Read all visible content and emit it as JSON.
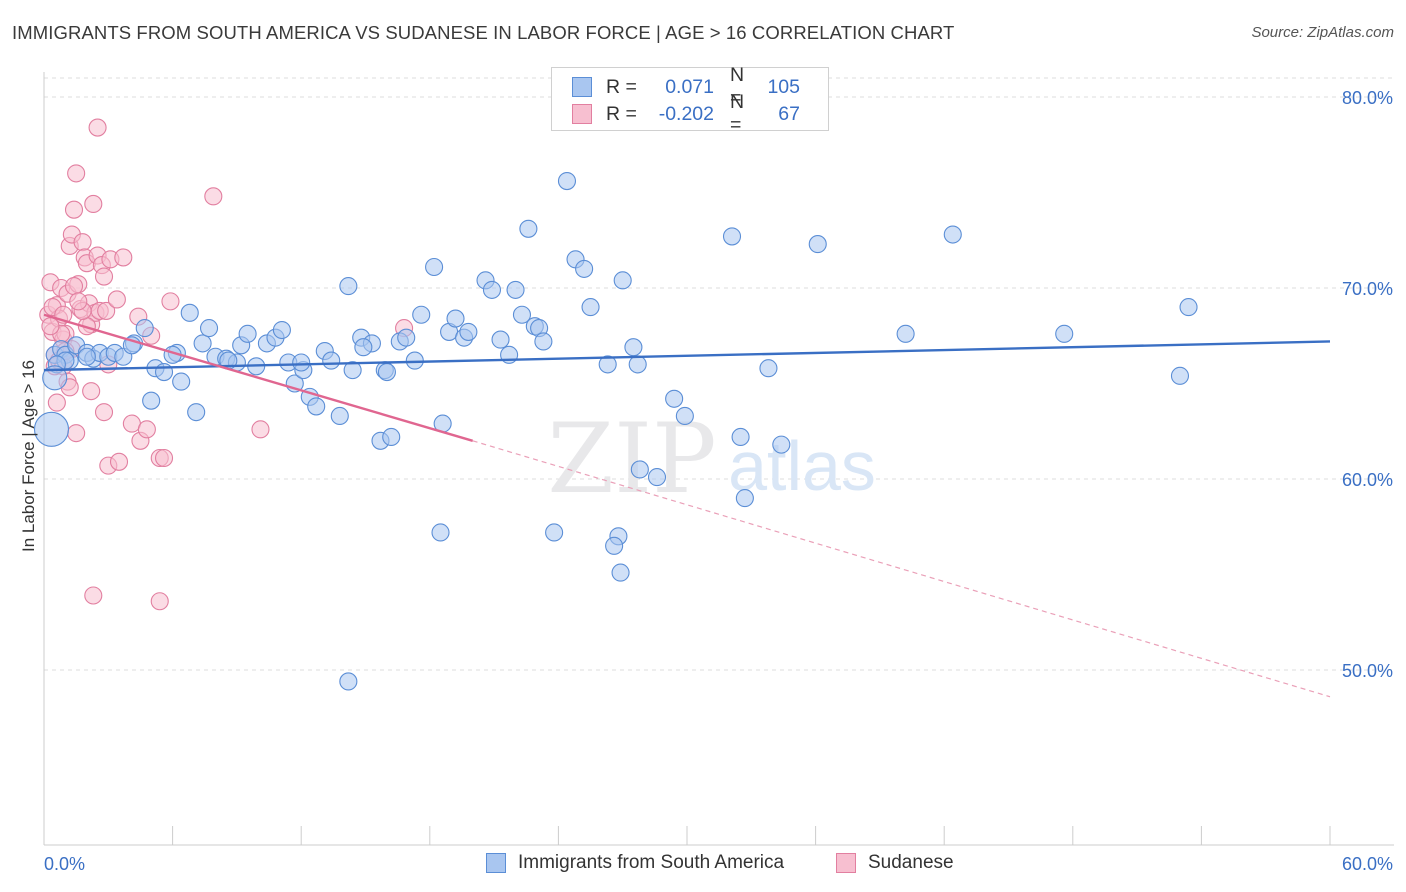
{
  "title": "IMMIGRANTS FROM SOUTH AMERICA VS SUDANESE IN LABOR FORCE | AGE > 16 CORRELATION CHART",
  "source": "Source: ZipAtlas.com",
  "watermark": {
    "zip": "ZIP",
    "atlas": "atlas"
  },
  "legend": {
    "r_label": "R =",
    "n_label": "N =",
    "rows": [
      {
        "name": "blue",
        "r": "0.071",
        "n": "105",
        "fill": "#a9c6f0",
        "stroke": "#5b8ed6"
      },
      {
        "name": "pink",
        "r": "-0.202",
        "n": "67",
        "fill": "#f7bfd0",
        "stroke": "#e27fa0"
      }
    ]
  },
  "bottom_legend": [
    {
      "label": "Immigrants from South America",
      "fill": "#a9c6f0",
      "stroke": "#5b8ed6"
    },
    {
      "label": "Sudanese",
      "fill": "#f7bfd0",
      "stroke": "#e27fa0"
    }
  ],
  "chart_data": {
    "type": "scatter",
    "title": "IMMIGRANTS FROM SOUTH AMERICA VS SUDANESE IN LABOR FORCE | AGE > 16 CORRELATION CHART",
    "xlabel": "",
    "ylabel": "In Labor Force | Age > 16",
    "xlim": [
      0,
      60
    ],
    "ylim": [
      40,
      82
    ],
    "x_tick_labels": [
      "0.0%",
      "60.0%"
    ],
    "y_ticks": [
      50,
      60,
      70,
      80
    ],
    "y_tick_labels": [
      "50.0%",
      "60.0%",
      "70.0%",
      "80.0%"
    ],
    "colors": {
      "blue": "#3a6fc4",
      "blue_fill": "#a9c6f0",
      "pink": "#e06690",
      "pink_fill": "#f7bfd0",
      "grid": "#dddddd"
    },
    "series": [
      {
        "name": "Immigrants from South America",
        "color": "#3a6fc4",
        "r": 0.071,
        "n": 105,
        "trend": {
          "x": [
            0,
            60
          ],
          "y": [
            65.7,
            67.2
          ]
        },
        "points": [
          [
            0.5,
            66.5
          ],
          [
            0.8,
            66.8
          ],
          [
            1.0,
            66.5
          ],
          [
            1.2,
            66.2
          ],
          [
            1.5,
            67.0
          ],
          [
            2.0,
            66.6
          ],
          [
            2.3,
            66.3
          ],
          [
            2.6,
            66.6
          ],
          [
            3.0,
            66.4
          ],
          [
            3.3,
            66.6
          ],
          [
            3.7,
            66.4
          ],
          [
            4.2,
            67.1
          ],
          [
            4.7,
            67.9
          ],
          [
            5.0,
            64.1
          ],
          [
            5.2,
            65.8
          ],
          [
            5.6,
            65.6
          ],
          [
            6.2,
            66.6
          ],
          [
            6.4,
            65.1
          ],
          [
            6.8,
            68.7
          ],
          [
            7.1,
            63.5
          ],
          [
            7.4,
            67.1
          ],
          [
            7.7,
            67.9
          ],
          [
            8.0,
            66.4
          ],
          [
            8.5,
            66.3
          ],
          [
            9.0,
            66.1
          ],
          [
            9.2,
            67.0
          ],
          [
            9.5,
            67.6
          ],
          [
            9.9,
            65.9
          ],
          [
            10.4,
            67.1
          ],
          [
            10.8,
            67.4
          ],
          [
            11.1,
            67.8
          ],
          [
            11.4,
            66.1
          ],
          [
            11.7,
            65.0
          ],
          [
            12.1,
            65.7
          ],
          [
            12.4,
            64.3
          ],
          [
            12.7,
            63.8
          ],
          [
            13.1,
            66.7
          ],
          [
            13.4,
            66.2
          ],
          [
            13.8,
            63.3
          ],
          [
            14.2,
            70.1
          ],
          [
            14.4,
            65.7
          ],
          [
            14.8,
            67.4
          ],
          [
            15.3,
            67.1
          ],
          [
            15.7,
            62.0
          ],
          [
            15.9,
            65.7
          ],
          [
            16.2,
            62.2
          ],
          [
            16.6,
            67.2
          ],
          [
            16.9,
            67.4
          ],
          [
            17.3,
            66.2
          ],
          [
            17.6,
            68.6
          ],
          [
            18.2,
            71.1
          ],
          [
            18.6,
            62.9
          ],
          [
            18.9,
            67.7
          ],
          [
            19.2,
            68.4
          ],
          [
            19.6,
            67.4
          ],
          [
            19.8,
            67.7
          ],
          [
            20.6,
            70.4
          ],
          [
            20.9,
            69.9
          ],
          [
            21.3,
            67.3
          ],
          [
            21.7,
            66.5
          ],
          [
            22.0,
            69.9
          ],
          [
            22.3,
            68.6
          ],
          [
            22.6,
            73.1
          ],
          [
            22.9,
            68.0
          ],
          [
            23.1,
            67.9
          ],
          [
            23.3,
            67.2
          ],
          [
            23.8,
            57.2
          ],
          [
            24.4,
            75.6
          ],
          [
            24.8,
            71.5
          ],
          [
            25.2,
            71.0
          ],
          [
            25.5,
            69.0
          ],
          [
            26.3,
            66.0
          ],
          [
            26.8,
            57.0
          ],
          [
            27.0,
            70.4
          ],
          [
            27.5,
            66.9
          ],
          [
            27.7,
            66.0
          ],
          [
            27.8,
            60.5
          ],
          [
            28.6,
            60.1
          ],
          [
            29.4,
            64.2
          ],
          [
            29.9,
            63.3
          ],
          [
            32.1,
            72.7
          ],
          [
            32.5,
            62.2
          ],
          [
            32.7,
            59.0
          ],
          [
            33.8,
            65.8
          ],
          [
            34.4,
            61.8
          ],
          [
            36.1,
            72.3
          ],
          [
            40.2,
            67.6
          ],
          [
            42.4,
            72.8
          ],
          [
            47.6,
            67.6
          ],
          [
            53.0,
            65.4
          ],
          [
            53.4,
            69.0
          ],
          [
            14.2,
            49.4
          ],
          [
            18.5,
            57.2
          ],
          [
            26.6,
            56.5
          ],
          [
            26.9,
            55.1
          ],
          [
            1.0,
            66.2
          ],
          [
            0.6,
            66.0
          ],
          [
            2.0,
            66.4
          ],
          [
            4.1,
            67.0
          ],
          [
            6.0,
            66.5
          ],
          [
            8.6,
            66.2
          ],
          [
            12.0,
            66.1
          ],
          [
            14.9,
            66.9
          ],
          [
            16.0,
            65.6
          ]
        ]
      },
      {
        "name": "Sudanese",
        "color": "#e06690",
        "r": -0.202,
        "n": 67,
        "trend": {
          "x": [
            0,
            20
          ],
          "y": [
            68.6,
            62.0
          ]
        },
        "trend_dashed": {
          "x": [
            20,
            60
          ],
          "y": [
            62.0,
            48.6
          ]
        },
        "points": [
          [
            0.2,
            68.6
          ],
          [
            0.3,
            70.3
          ],
          [
            0.4,
            67.7
          ],
          [
            0.5,
            66.5
          ],
          [
            0.6,
            69.1
          ],
          [
            0.7,
            68.4
          ],
          [
            0.8,
            70.0
          ],
          [
            0.9,
            67.3
          ],
          [
            1.0,
            67.6
          ],
          [
            1.1,
            69.7
          ],
          [
            1.2,
            72.2
          ],
          [
            1.3,
            72.8
          ],
          [
            1.4,
            74.1
          ],
          [
            1.5,
            76.0
          ],
          [
            1.6,
            70.2
          ],
          [
            1.7,
            68.9
          ],
          [
            1.8,
            72.4
          ],
          [
            1.9,
            71.6
          ],
          [
            2.0,
            71.3
          ],
          [
            2.1,
            69.2
          ],
          [
            2.2,
            68.1
          ],
          [
            2.3,
            74.4
          ],
          [
            2.4,
            68.7
          ],
          [
            2.5,
            71.7
          ],
          [
            2.6,
            68.8
          ],
          [
            2.7,
            71.2
          ],
          [
            2.8,
            70.6
          ],
          [
            2.9,
            68.8
          ],
          [
            3.0,
            66.0
          ],
          [
            3.1,
            71.5
          ],
          [
            3.4,
            69.4
          ],
          [
            3.7,
            71.6
          ],
          [
            4.1,
            62.9
          ],
          [
            4.4,
            68.5
          ],
          [
            4.5,
            62.0
          ],
          [
            4.8,
            62.6
          ],
          [
            5.0,
            67.5
          ],
          [
            5.4,
            61.1
          ],
          [
            5.6,
            61.1
          ],
          [
            5.9,
            69.3
          ],
          [
            7.9,
            74.8
          ],
          [
            10.1,
            62.6
          ],
          [
            16.8,
            67.9
          ],
          [
            2.5,
            78.4
          ],
          [
            3.0,
            60.7
          ],
          [
            3.5,
            60.9
          ],
          [
            2.3,
            53.9
          ],
          [
            5.4,
            53.6
          ],
          [
            0.4,
            69.0
          ],
          [
            0.5,
            65.9
          ],
          [
            0.7,
            66.2
          ],
          [
            0.8,
            67.6
          ],
          [
            0.9,
            65.9
          ],
          [
            1.1,
            65.1
          ],
          [
            1.3,
            66.8
          ],
          [
            1.5,
            62.4
          ],
          [
            2.2,
            64.6
          ],
          [
            2.8,
            63.5
          ],
          [
            0.6,
            64.0
          ],
          [
            1.0,
            66.7
          ],
          [
            1.4,
            70.1
          ],
          [
            2.0,
            68.0
          ],
          [
            0.3,
            68.0
          ],
          [
            1.2,
            64.8
          ],
          [
            1.8,
            68.8
          ],
          [
            0.9,
            68.6
          ],
          [
            1.6,
            69.3
          ]
        ]
      }
    ],
    "big_points": [
      {
        "series": "blue",
        "x": 0.35,
        "y": 62.6
      },
      {
        "series": "blue",
        "x": 0.5,
        "y": 65.3
      }
    ]
  }
}
